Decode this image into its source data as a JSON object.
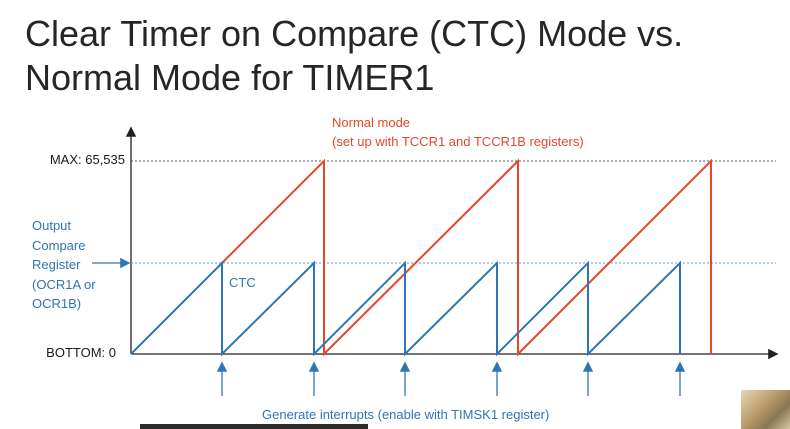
{
  "title": {
    "line1": "Clear Timer on Compare (CTC) Mode vs.",
    "line2": "Normal Mode for TIMER1"
  },
  "diagram": {
    "max_label": "MAX: 65,535",
    "bottom_label": "BOTTOM: 0",
    "ocr_label_lines": [
      "Output",
      "Compare",
      "Register",
      "(OCR1A or",
      "OCR1B)"
    ],
    "ctc_label": "CTC",
    "normal_mode_lines": [
      "Normal mode",
      "(set up with TCCR1 and TCCR1B registers)"
    ],
    "interrupt_label": "Generate interrupts (enable with TIMSK1 register)",
    "colors": {
      "ctc": "#2e75b6",
      "normal": "#e8452c",
      "axis": "#222222",
      "title": "#262626"
    }
  }
}
